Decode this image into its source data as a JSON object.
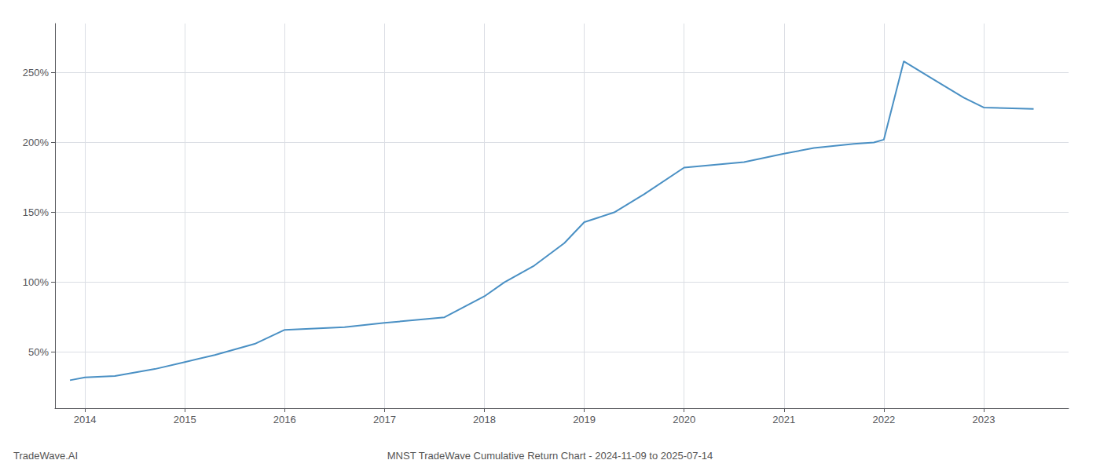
{
  "chart_data": {
    "type": "line",
    "title": "MNST TradeWave Cumulative Return Chart - 2024-11-09 to 2025-07-14",
    "annotations": [
      "TradeWave.AI"
    ],
    "x": [
      2013.85,
      2014.0,
      2014.3,
      2014.7,
      2015.0,
      2015.3,
      2015.7,
      2016.0,
      2016.3,
      2016.6,
      2017.0,
      2017.3,
      2017.6,
      2018.0,
      2018.2,
      2018.5,
      2018.8,
      2019.0,
      2019.3,
      2019.6,
      2020.0,
      2020.3,
      2020.6,
      2021.0,
      2021.3,
      2021.7,
      2021.9,
      2022.0,
      2022.2,
      2022.5,
      2022.8,
      2023.0,
      2023.5
    ],
    "values": [
      30,
      32,
      33,
      38,
      43,
      48,
      56,
      66,
      67,
      68,
      71,
      73,
      75,
      90,
      100,
      112,
      128,
      143,
      150,
      163,
      182,
      184,
      186,
      192,
      196,
      199,
      200,
      202,
      258,
      245,
      232,
      225,
      224
    ],
    "color": "#4a90c4",
    "xlim": [
      2013.7,
      2023.85
    ],
    "xticks": [
      2014,
      2015,
      2016,
      2017,
      2018,
      2019,
      2020,
      2021,
      2022,
      2023
    ],
    "ylim": [
      10,
      285
    ],
    "yticks": [
      {
        "value": 50,
        "label": "50%"
      },
      {
        "value": 100,
        "label": "100%"
      },
      {
        "value": 150,
        "label": "150%"
      },
      {
        "value": 200,
        "label": "200%"
      },
      {
        "value": 250,
        "label": "250%"
      }
    ],
    "grid": true
  }
}
